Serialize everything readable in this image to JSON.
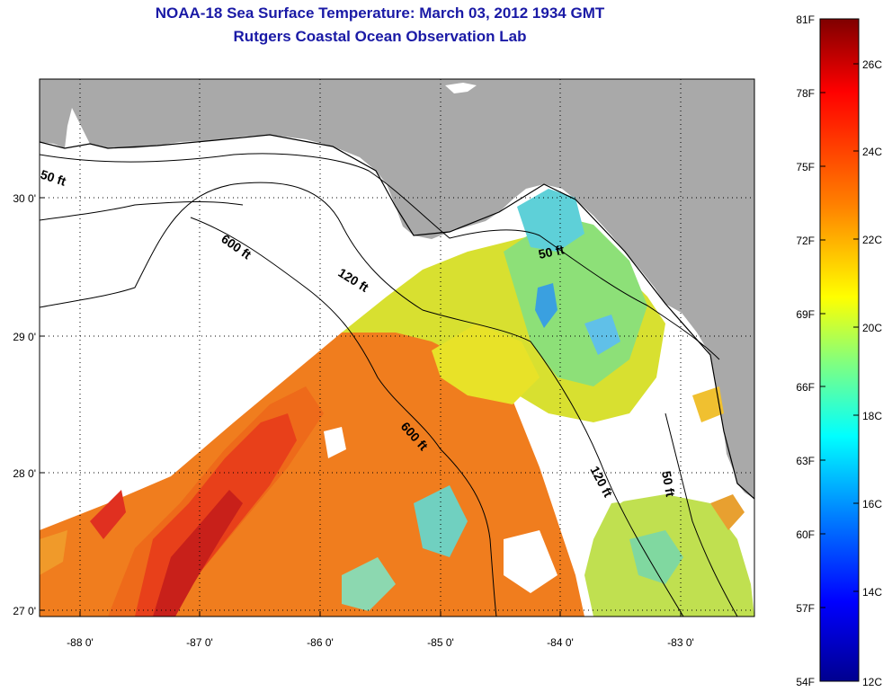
{
  "header": {
    "title": "NOAA-18 Sea Surface Temperature:  March 03, 2012 1934 GMT",
    "subtitle": "Rutgers Coastal Ocean Observation Lab"
  },
  "map": {
    "lon_ticks": [
      "-88 0'",
      "-87 0'",
      "-86 0'",
      "-85 0'",
      "-84 0'",
      "-83 0'"
    ],
    "lat_ticks": [
      "30 0'",
      "29 0'",
      "28 0'",
      "27 0'"
    ],
    "contour_labels": [
      "50 ft",
      "600 ft",
      "120 ft",
      "50 ft",
      "600 ft",
      "120 ft",
      "50 ft"
    ],
    "colors": {
      "land": "#a9a9a9",
      "no_data": "#ffffff",
      "contour": "#000000",
      "grid": "#000000"
    }
  },
  "colorbar": {
    "fahrenheit_labels": [
      "81F",
      "78F",
      "75F",
      "72F",
      "69F",
      "66F",
      "63F",
      "60F",
      "57F",
      "54F"
    ],
    "celsius_labels": [
      "26C",
      "24C",
      "22C",
      "20C",
      "18C",
      "16C",
      "14C",
      "12C"
    ],
    "gradient_stops": [
      "#7f0000",
      "#ff0000",
      "#ff8000",
      "#ffff00",
      "#80ff80",
      "#00ffff",
      "#0080ff",
      "#0000ff",
      "#00008f"
    ]
  }
}
